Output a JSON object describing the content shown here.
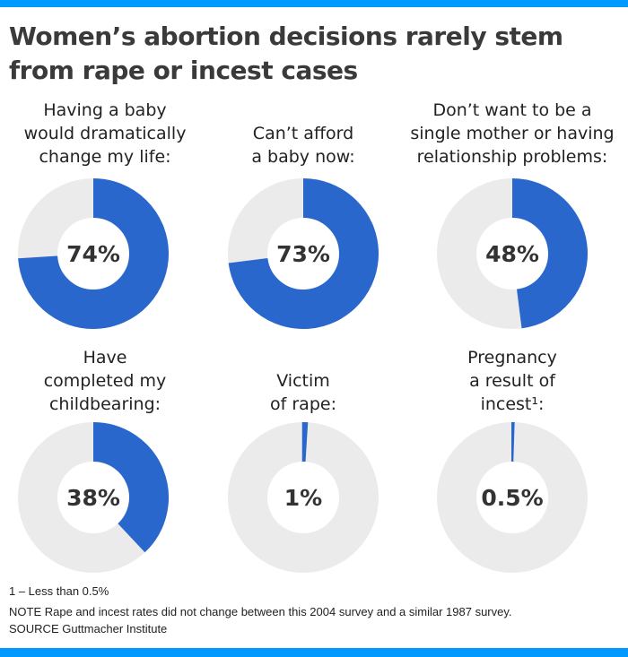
{
  "title_lines": [
    "Women’s abortion decisions rarely stem",
    "from rape or incest cases"
  ],
  "colors": {
    "accent": "#0099ff",
    "fill": "#2a67cc",
    "track": "#ebebeb"
  },
  "chart_data": [
    {
      "type": "pie",
      "label_lines": [
        "Having a baby",
        "would dramatically",
        "change my life:"
      ],
      "value": 74,
      "value_label": "74%"
    },
    {
      "type": "pie",
      "label_lines": [
        "Can’t afford",
        "a baby now:"
      ],
      "value": 73,
      "value_label": "73%"
    },
    {
      "type": "pie",
      "label_lines": [
        "Don’t want to be a",
        "single mother or having",
        "relationship problems:"
      ],
      "value": 48,
      "value_label": "48%"
    },
    {
      "type": "pie",
      "label_lines": [
        "Have",
        "completed my",
        "childbearing:"
      ],
      "value": 38,
      "value_label": "38%"
    },
    {
      "type": "pie",
      "label_lines": [
        "Victim",
        "of rape:"
      ],
      "value": 1,
      "value_label": "1%"
    },
    {
      "type": "pie",
      "label_lines": [
        "Pregnancy",
        "a result of",
        "incest¹:"
      ],
      "value": 0.5,
      "value_label": "0.5%"
    }
  ],
  "footnote": "1 – Less than 0.5%",
  "note": "NOTE Rape and incest rates did not change between this 2004 survey and a similar 1987 survey.",
  "source": "SOURCE Guttmacher Institute"
}
